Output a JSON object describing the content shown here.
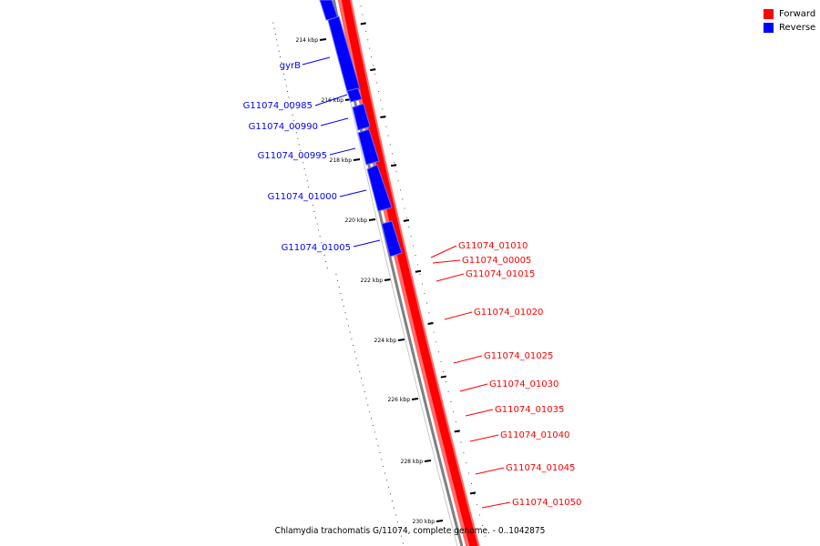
{
  "caption": "Chlamydia trachomatis G/11074, complete genome. - 0..1042875",
  "legend": [
    {
      "label": "Forward",
      "color": "#ff0000"
    },
    {
      "label": "Reverse",
      "color": "#0000ff"
    }
  ],
  "colors": {
    "forward": "#ff0000",
    "forward_light": "#ff6b6b",
    "reverse": "#0000ff",
    "reverse_light": "#6b6bff",
    "backbone": "#808080"
  },
  "scale": {
    "labels": [
      "214 kbp",
      "216 kbp",
      "218 kbp",
      "220 kbp",
      "222 kbp",
      "224 kbp",
      "226 kbp",
      "228 kbp",
      "230 kbp"
    ]
  },
  "reverse_genes": [
    {
      "label": "gyrB"
    },
    {
      "label": "G11074_00985"
    },
    {
      "label": "G11074_00990"
    },
    {
      "label": "G11074_00995"
    },
    {
      "label": "G11074_01000"
    },
    {
      "label": "G11074_01005"
    }
  ],
  "forward_genes": [
    {
      "label": "G11074_01010"
    },
    {
      "label": "G11074_00005"
    },
    {
      "label": "G11074_01015"
    },
    {
      "label": "G11074_01020"
    },
    {
      "label": "G11074_01025"
    },
    {
      "label": "G11074_01030"
    },
    {
      "label": "G11074_01035"
    },
    {
      "label": "G11074_01040"
    },
    {
      "label": "G11074_01045"
    },
    {
      "label": "G11074_01050"
    }
  ]
}
